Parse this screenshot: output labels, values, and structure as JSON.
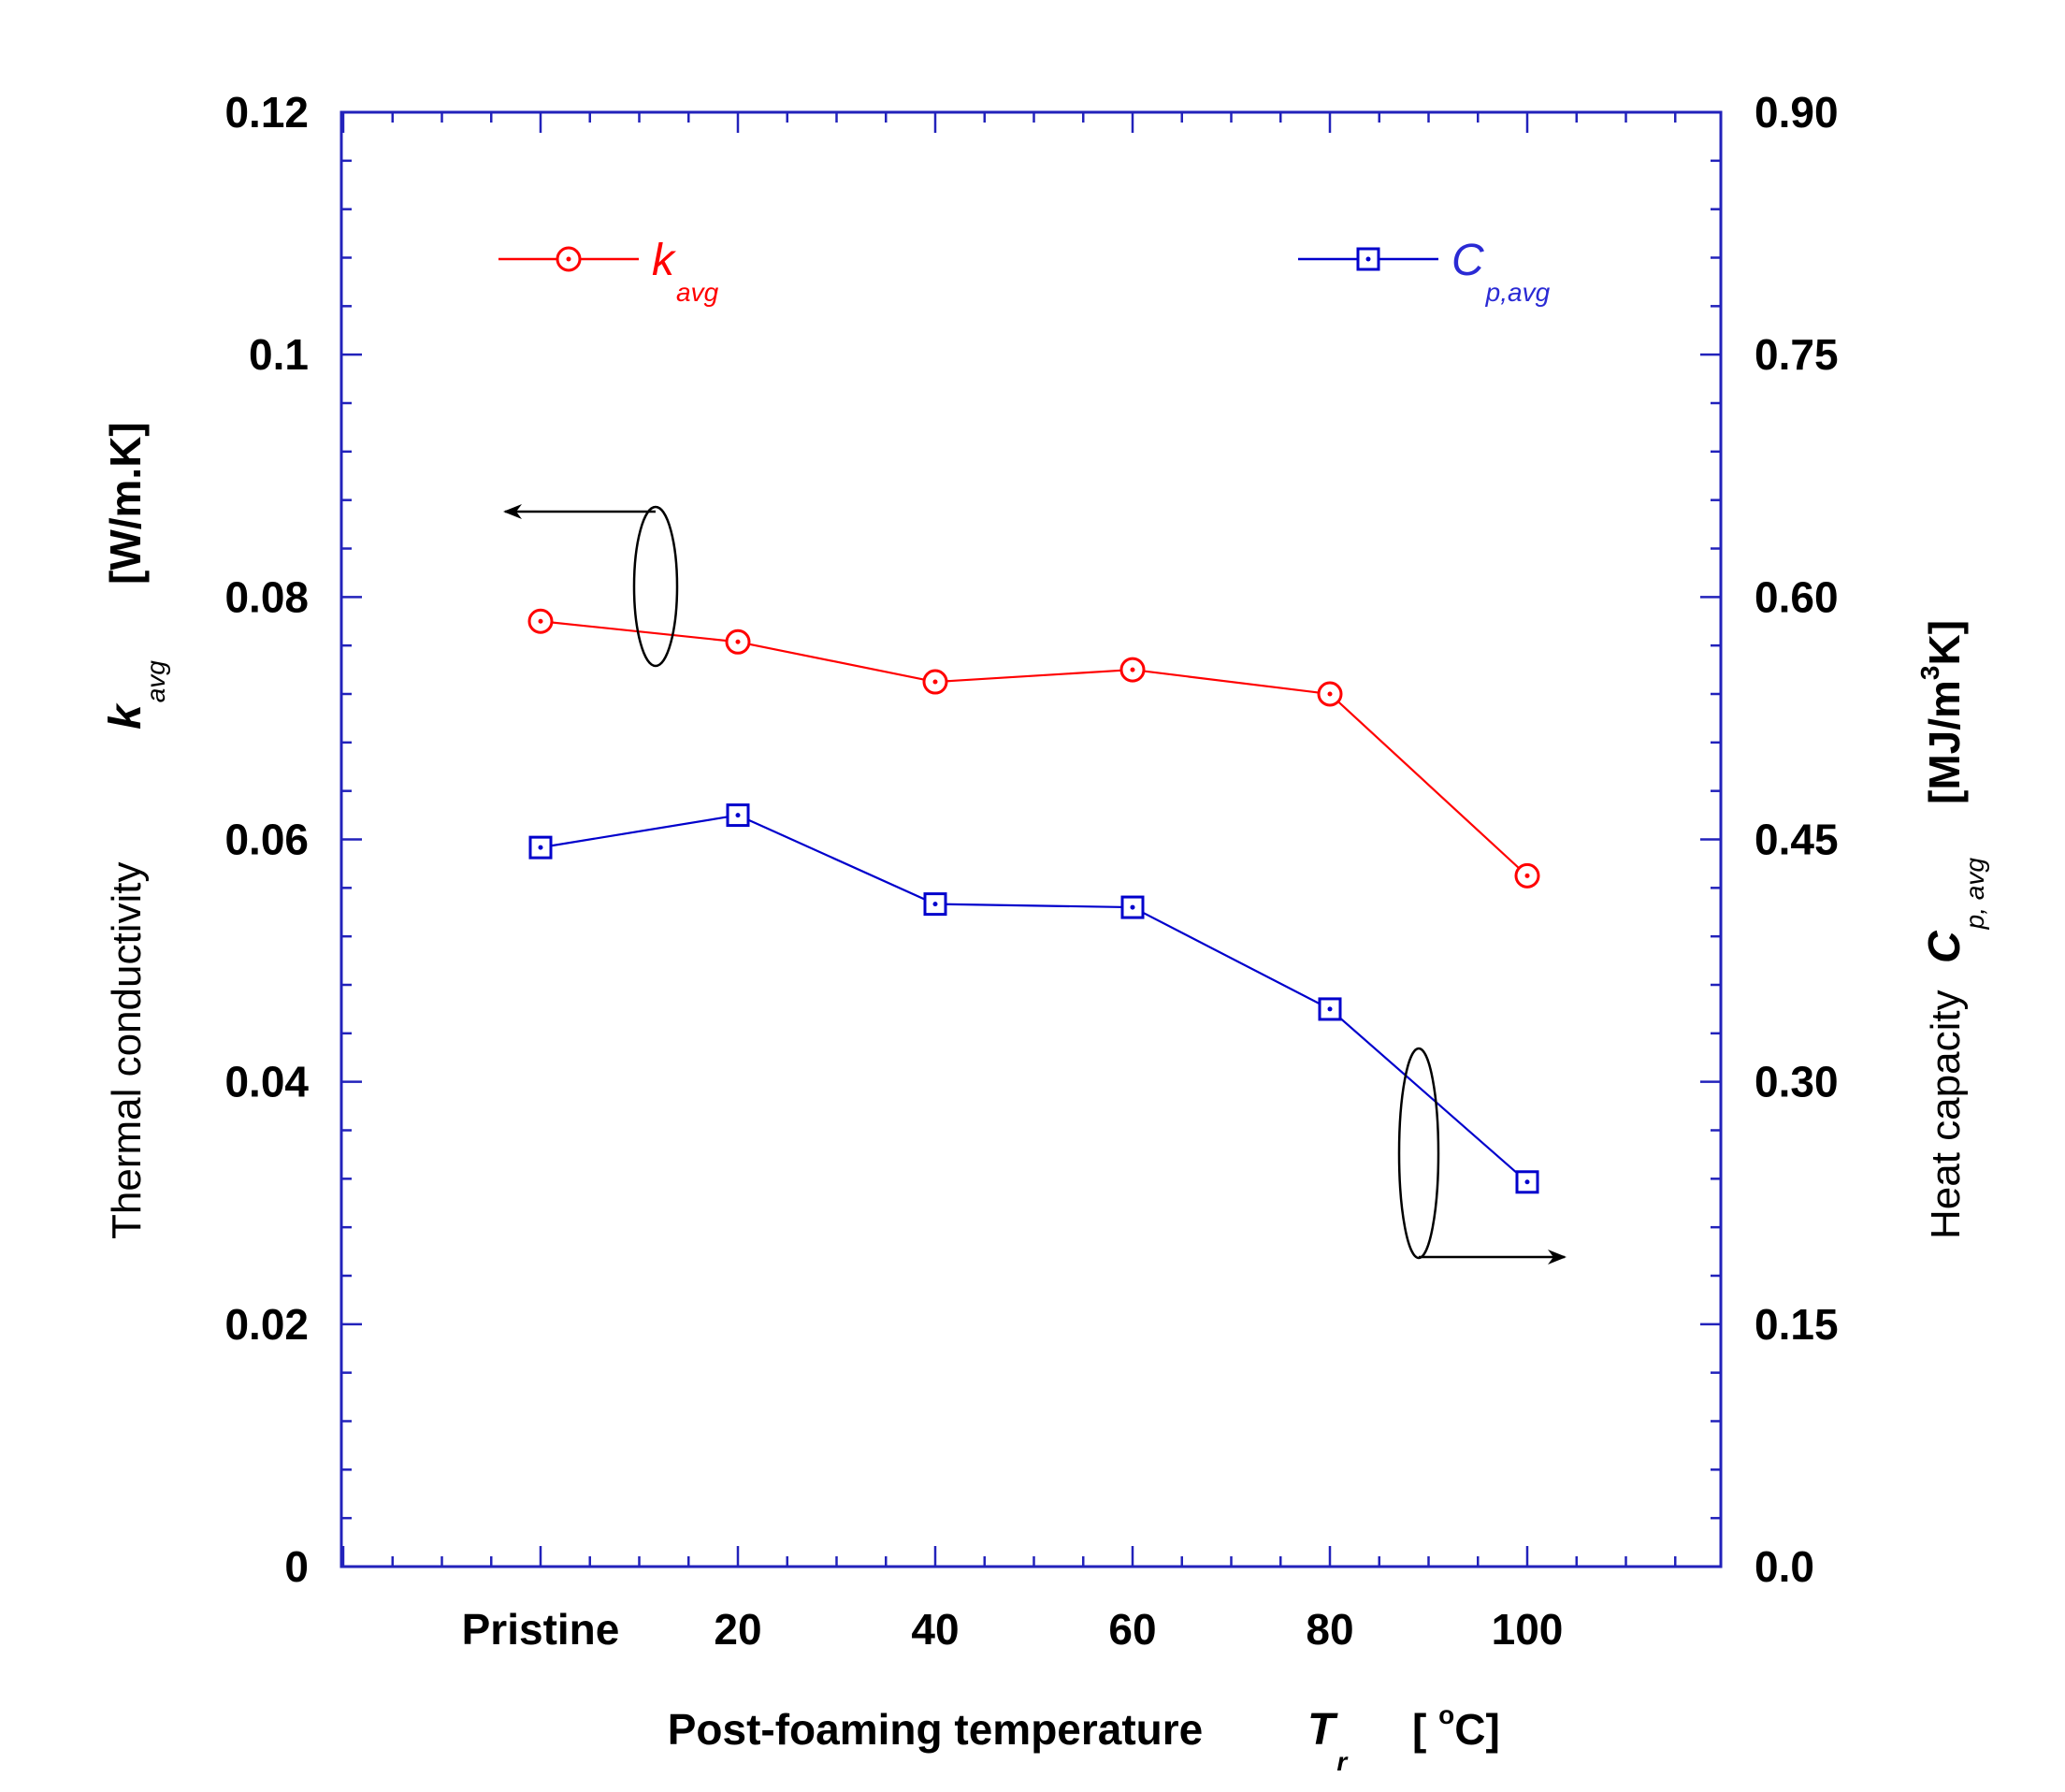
{
  "chart_data": {
    "type": "line",
    "x_axis": {
      "title": "Post-foaming temperature",
      "symbol": "T",
      "symbol_sub": "r",
      "unit": "[ °C]",
      "unit_prefix": "[ ",
      "unit_sup": "o",
      "unit_suffix": "C]",
      "categories": [
        "Pristine",
        "20",
        "40",
        "60",
        "80",
        "100"
      ]
    },
    "y_left": {
      "title": "Thermal conductivity",
      "symbol": "k",
      "symbol_sub": "avg",
      "unit": "[W/m.K]",
      "ylim": [
        0,
        0.12
      ],
      "ticks": [
        "0",
        "0.02",
        "0.04",
        "0.06",
        "0.08",
        "0.1",
        "0.12"
      ],
      "color": "#2222bb"
    },
    "y_right": {
      "title": "Heat capacity",
      "symbol": "C",
      "symbol_sub": "p, avg",
      "unit_prefix": "[MJ/m",
      "unit_sup": "3",
      "unit_suffix": "K]",
      "ylim": [
        0,
        0.9
      ],
      "ticks": [
        "0.0",
        "0.15",
        "0.30",
        "0.45",
        "0.60",
        "0.75",
        "0.90"
      ],
      "color": "#2222bb"
    },
    "series": [
      {
        "name": "k_avg",
        "label_main": "k",
        "label_sub": "avg",
        "axis": "left",
        "marker": "circle",
        "color": "#ff0000",
        "values": [
          0.078,
          0.0763,
          0.073,
          0.074,
          0.072,
          0.057
        ]
      },
      {
        "name": "C_p,avg",
        "label_main": "C",
        "label_sub": "p,avg",
        "axis": "right",
        "marker": "square",
        "color": "#0000cc",
        "values": [
          0.445,
          0.465,
          0.41,
          0.408,
          0.345,
          0.238
        ]
      }
    ]
  }
}
